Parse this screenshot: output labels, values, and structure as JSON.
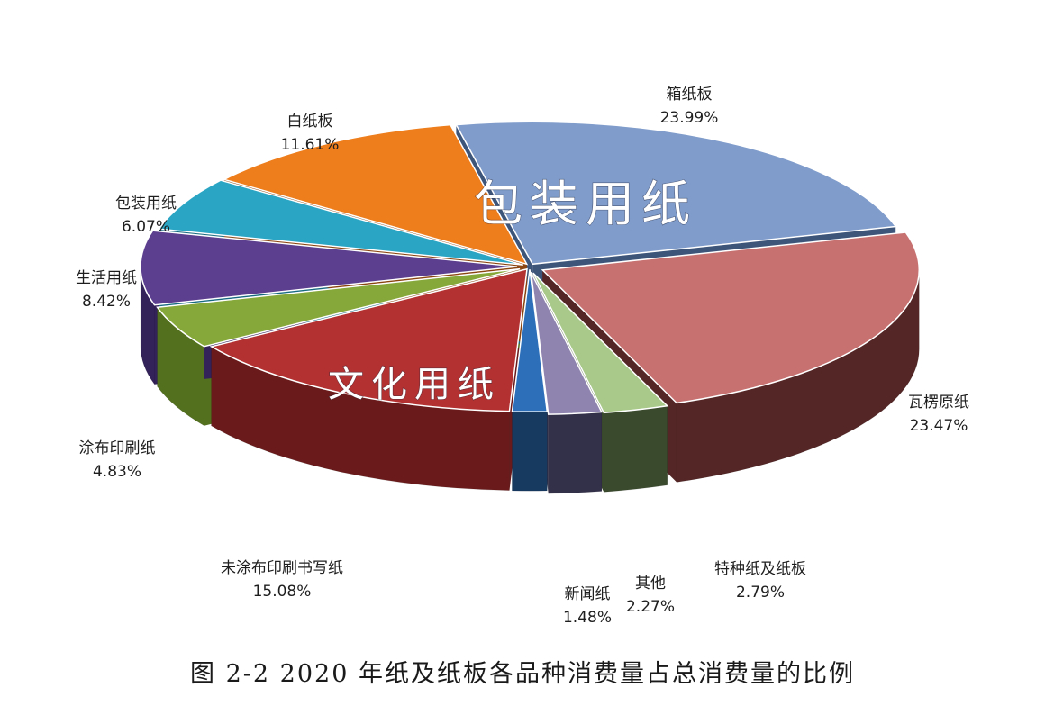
{
  "caption": "图 2-2   2020 年纸及纸板各品种消费量占总消费量的比例",
  "chart_data": {
    "type": "pie",
    "style": "3d-exploded",
    "slices": [
      {
        "name": "箱纸板",
        "value": 23.99,
        "value_label": "23.99%",
        "color": "#7f9ccb",
        "side_color": "#3e557a"
      },
      {
        "name": "瓦楞原纸",
        "value": 23.47,
        "value_label": "23.47%",
        "color": "#c77171",
        "side_color": "#552626"
      },
      {
        "name": "特种纸及纸板",
        "value": 2.79,
        "value_label": "2.79%",
        "color": "#a8c98a",
        "side_color": "#3a4a2c"
      },
      {
        "name": "其他",
        "value": 2.27,
        "value_label": "2.27%",
        "color": "#8f84b0",
        "side_color": "#33304a"
      },
      {
        "name": "新闻纸",
        "value": 1.48,
        "value_label": "1.48%",
        "color": "#2e6fba",
        "side_color": "#173a60"
      },
      {
        "name": "未涂布印刷书写纸",
        "value": 15.08,
        "value_label": "15.08%",
        "color": "#b33131",
        "side_color": "#6a1a1a"
      },
      {
        "name": "涂布印刷纸",
        "value": 4.83,
        "value_label": "4.83%",
        "color": "#86a83a",
        "side_color": "#53701f"
      },
      {
        "name": "生活用纸",
        "value": 8.42,
        "value_label": "8.42%",
        "color": "#5c3f8f",
        "side_color": "#33215a"
      },
      {
        "name": "包装用纸",
        "value": 6.07,
        "value_label": "6.07%",
        "color": "#2aa6c4",
        "side_color": "#176a80"
      },
      {
        "name": "白纸板",
        "value": 11.61,
        "value_label": "11.61%",
        "color": "#ee7d1b",
        "side_color": "#8a4510"
      }
    ],
    "groups": [
      {
        "label": "包装用纸"
      },
      {
        "label": "文化用纸"
      }
    ]
  }
}
